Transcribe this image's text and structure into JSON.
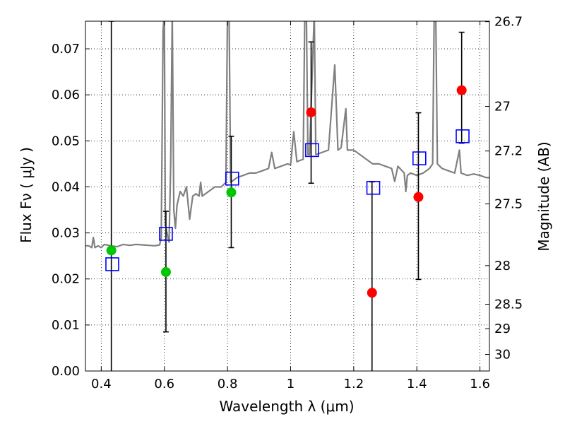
{
  "chart_data": {
    "type": "scatter",
    "xlabel": "Wavelength  λ (μm)",
    "ylabel": "Flux  Fν  ( μJy )",
    "ylabel_right": "Magnitude (AB)",
    "xlim": [
      0.35,
      1.63
    ],
    "ylim": [
      0.0,
      0.076
    ],
    "grid": true,
    "x_ticks": [
      {
        "value": 0.4,
        "label": "0.4"
      },
      {
        "value": 0.6,
        "label": "0.6"
      },
      {
        "value": 0.8,
        "label": "0.8"
      },
      {
        "value": 1.0,
        "label": "1"
      },
      {
        "value": 1.2,
        "label": "1.2"
      },
      {
        "value": 1.4,
        "label": "1.4"
      },
      {
        "value": 1.6,
        "label": "1.6"
      }
    ],
    "y_ticks": [
      {
        "value": 0.0,
        "label": "0.00"
      },
      {
        "value": 0.01,
        "label": "0.01"
      },
      {
        "value": 0.02,
        "label": "0.02"
      },
      {
        "value": 0.03,
        "label": "0.03"
      },
      {
        "value": 0.04,
        "label": "0.04"
      },
      {
        "value": 0.05,
        "label": "0.05"
      },
      {
        "value": 0.06,
        "label": "0.06"
      },
      {
        "value": 0.07,
        "label": "0.07"
      }
    ],
    "right_ticks": [
      {
        "flux": 0.0759,
        "label": "26.7"
      },
      {
        "flux": 0.0575,
        "label": "27"
      },
      {
        "flux": 0.0478,
        "label": "27.2"
      },
      {
        "flux": 0.0363,
        "label": "27.5"
      },
      {
        "flux": 0.0229,
        "label": "28"
      },
      {
        "flux": 0.0145,
        "label": "28.5"
      },
      {
        "flux": 0.0092,
        "label": "29"
      },
      {
        "flux": 0.0036,
        "label": "30"
      }
    ],
    "series": [
      {
        "kind": "model_spectrum",
        "color": "#808080",
        "points": [
          [
            0.35,
            0.0272
          ],
          [
            0.36,
            0.0272
          ],
          [
            0.37,
            0.0268
          ],
          [
            0.375,
            0.029
          ],
          [
            0.38,
            0.0268
          ],
          [
            0.39,
            0.0272
          ],
          [
            0.4,
            0.0268
          ],
          [
            0.41,
            0.0275
          ],
          [
            0.43,
            0.0272
          ],
          [
            0.45,
            0.027
          ],
          [
            0.47,
            0.0275
          ],
          [
            0.49,
            0.0273
          ],
          [
            0.51,
            0.0275
          ],
          [
            0.53,
            0.0274
          ],
          [
            0.55,
            0.0273
          ],
          [
            0.57,
            0.0272
          ],
          [
            0.585,
            0.0274
          ],
          [
            0.59,
            0.029
          ],
          [
            0.596,
            0.074
          ],
          [
            0.6,
            0.078
          ],
          [
            0.603,
            0.032
          ],
          [
            0.608,
            0.03
          ],
          [
            0.615,
            0.028
          ],
          [
            0.62,
            0.045
          ],
          [
            0.625,
            0.078
          ],
          [
            0.63,
            0.035
          ],
          [
            0.635,
            0.031
          ],
          [
            0.64,
            0.036
          ],
          [
            0.65,
            0.039
          ],
          [
            0.66,
            0.038
          ],
          [
            0.67,
            0.04
          ],
          [
            0.68,
            0.033
          ],
          [
            0.69,
            0.038
          ],
          [
            0.7,
            0.0385
          ],
          [
            0.71,
            0.038
          ],
          [
            0.715,
            0.041
          ],
          [
            0.72,
            0.038
          ],
          [
            0.74,
            0.039
          ],
          [
            0.76,
            0.04
          ],
          [
            0.78,
            0.04
          ],
          [
            0.795,
            0.041
          ],
          [
            0.8,
            0.078
          ],
          [
            0.805,
            0.078
          ],
          [
            0.81,
            0.041
          ],
          [
            0.83,
            0.042
          ],
          [
            0.85,
            0.0425
          ],
          [
            0.87,
            0.043
          ],
          [
            0.89,
            0.043
          ],
          [
            0.91,
            0.0435
          ],
          [
            0.93,
            0.044
          ],
          [
            0.94,
            0.0475
          ],
          [
            0.95,
            0.044
          ],
          [
            0.97,
            0.0445
          ],
          [
            0.99,
            0.045
          ],
          [
            1.0,
            0.0448
          ],
          [
            1.01,
            0.052
          ],
          [
            1.02,
            0.0455
          ],
          [
            1.04,
            0.046
          ],
          [
            1.045,
            0.078
          ],
          [
            1.05,
            0.078
          ],
          [
            1.055,
            0.047
          ],
          [
            1.06,
            0.047
          ],
          [
            1.075,
            0.078
          ],
          [
            1.08,
            0.047
          ],
          [
            1.1,
            0.0475
          ],
          [
            1.12,
            0.048
          ],
          [
            1.14,
            0.0665
          ],
          [
            1.15,
            0.048
          ],
          [
            1.16,
            0.0485
          ],
          [
            1.175,
            0.057
          ],
          [
            1.18,
            0.048
          ],
          [
            1.2,
            0.048
          ],
          [
            1.22,
            0.047
          ],
          [
            1.24,
            0.046
          ],
          [
            1.26,
            0.045
          ],
          [
            1.28,
            0.045
          ],
          [
            1.3,
            0.0445
          ],
          [
            1.32,
            0.044
          ],
          [
            1.33,
            0.0412
          ],
          [
            1.34,
            0.0445
          ],
          [
            1.36,
            0.043
          ],
          [
            1.365,
            0.039
          ],
          [
            1.37,
            0.0425
          ],
          [
            1.38,
            0.043
          ],
          [
            1.4,
            0.0425
          ],
          [
            1.42,
            0.043
          ],
          [
            1.44,
            0.044
          ],
          [
            1.45,
            0.045
          ],
          [
            1.455,
            0.078
          ],
          [
            1.46,
            0.078
          ],
          [
            1.465,
            0.045
          ],
          [
            1.48,
            0.044
          ],
          [
            1.5,
            0.0435
          ],
          [
            1.52,
            0.043
          ],
          [
            1.535,
            0.048
          ],
          [
            1.54,
            0.043
          ],
          [
            1.56,
            0.0425
          ],
          [
            1.58,
            0.0428
          ],
          [
            1.6,
            0.0425
          ],
          [
            1.62,
            0.042
          ],
          [
            1.63,
            0.042
          ]
        ]
      },
      {
        "kind": "model_fluxes",
        "marker": "open-square",
        "color": "#0000ff",
        "points": [
          [
            0.435,
            0.0232
          ],
          [
            0.605,
            0.0298
          ],
          [
            0.815,
            0.0418
          ],
          [
            1.068,
            0.048
          ],
          [
            1.262,
            0.0398
          ],
          [
            1.408,
            0.0462
          ],
          [
            1.545,
            0.051
          ]
        ]
      },
      {
        "kind": "measured_fluxes",
        "marker": "filled-circle",
        "color_label": "green",
        "color": "#00c800",
        "points": [
          {
            "x": 0.432,
            "y": 0.0262,
            "err_low": 0.0262,
            "err_high": 0.0568
          },
          {
            "x": 0.605,
            "y": 0.0215,
            "err_low": 0.013,
            "err_high": 0.0132
          },
          {
            "x": 0.812,
            "y": 0.0388,
            "err_low": 0.012,
            "err_high": 0.0122
          }
        ]
      },
      {
        "kind": "measured_fluxes",
        "marker": "filled-circle",
        "color_label": "red",
        "color": "#ff0000",
        "points": [
          {
            "x": 1.065,
            "y": 0.0562,
            "err_low": 0.0154,
            "err_high": 0.0153
          },
          {
            "x": 1.258,
            "y": 0.017,
            "err_low": 0.017,
            "err_high": 0.0241
          },
          {
            "x": 1.405,
            "y": 0.0378,
            "err_low": 0.0179,
            "err_high": 0.0183
          },
          {
            "x": 1.542,
            "y": 0.061,
            "err_low": 0.0115,
            "err_high": 0.0126
          }
        ]
      }
    ]
  }
}
